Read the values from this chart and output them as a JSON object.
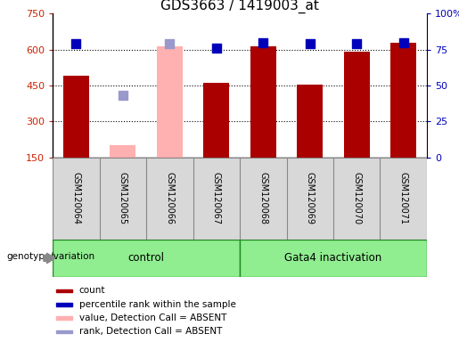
{
  "title": "GDS3663 / 1419003_at",
  "samples": [
    "GSM120064",
    "GSM120065",
    "GSM120066",
    "GSM120067",
    "GSM120068",
    "GSM120069",
    "GSM120070",
    "GSM120071"
  ],
  "bar_values": [
    490,
    null,
    null,
    460,
    615,
    455,
    590,
    628
  ],
  "bar_values_absent": [
    null,
    200,
    615,
    null,
    null,
    null,
    null,
    null
  ],
  "percentile_values": [
    79,
    null,
    null,
    76,
    80,
    79,
    79,
    80
  ],
  "percentile_absent": [
    null,
    43,
    79,
    null,
    null,
    null,
    null,
    null
  ],
  "bar_color": "#aa0000",
  "bar_color_absent": "#ffb0b0",
  "dot_color": "#0000bb",
  "dot_color_absent": "#9999cc",
  "ylim_left": [
    150,
    750
  ],
  "ylim_right": [
    0,
    100
  ],
  "yticks_left": [
    150,
    300,
    450,
    600,
    750
  ],
  "yticks_right": [
    0,
    25,
    50,
    75,
    100
  ],
  "ytick_labels_right": [
    "0",
    "25",
    "50",
    "75",
    "100%"
  ],
  "control_label": "control",
  "gata4_label": "Gata4 inactivation",
  "genotype_label": "genotype/variation",
  "legend_items": [
    {
      "label": "count",
      "color": "#aa0000"
    },
    {
      "label": "percentile rank within the sample",
      "color": "#0000bb"
    },
    {
      "label": "value, Detection Call = ABSENT",
      "color": "#ffb0b0"
    },
    {
      "label": "rank, Detection Call = ABSENT",
      "color": "#9999cc"
    }
  ],
  "bar_width": 0.55,
  "dot_size": 55,
  "title_fontsize": 11,
  "tick_fontsize": 8,
  "label_fontsize": 8
}
